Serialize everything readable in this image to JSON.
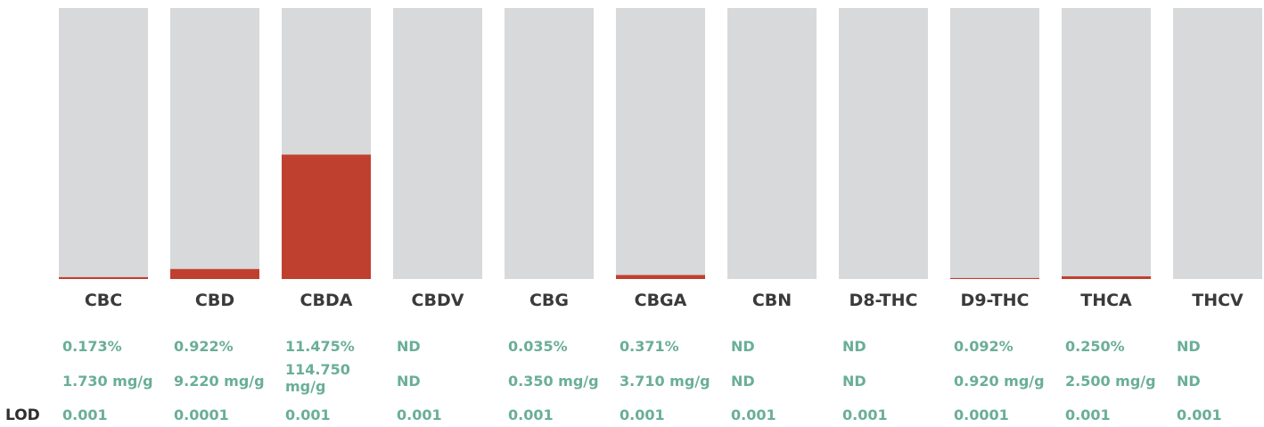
{
  "chart_data": {
    "type": "bar",
    "categories": [
      "CBC",
      "CBD",
      "CBDA",
      "CBDV",
      "CBG",
      "CBGA",
      "CBN",
      "D8-THC",
      "D9-THC",
      "THCA",
      "THCV"
    ],
    "values": [
      0.173,
      0.922,
      11.475,
      0,
      0.035,
      0.371,
      0,
      0,
      0.092,
      0.25,
      0
    ],
    "ylim": [
      0,
      25
    ],
    "rows": {
      "percent": [
        "0.173%",
        "0.922%",
        "11.475%",
        "ND",
        "0.035%",
        "0.371%",
        "ND",
        "ND",
        "0.092%",
        "0.250%",
        "ND"
      ],
      "mg_per_g": [
        [
          "1.730 mg/g"
        ],
        [
          "9.220 mg/g"
        ],
        [
          "114.750",
          "mg/g"
        ],
        [
          "ND"
        ],
        [
          "0.350 mg/g"
        ],
        [
          "3.710 mg/g"
        ],
        [
          "ND"
        ],
        [
          "ND"
        ],
        [
          "0.920 mg/g"
        ],
        [
          "2.500 mg/g"
        ],
        [
          "ND"
        ]
      ],
      "lod_label": "LOD",
      "lod": [
        "0.001",
        "0.0001",
        "0.001",
        "0.001",
        "0.001",
        "0.001",
        "0.001",
        "0.001",
        "0.0001",
        "0.001",
        "0.001"
      ]
    },
    "colors": {
      "track": "#d8d9db",
      "fill": "#c0402f",
      "value_text": "#6aae98",
      "label_text": "#3a3a3a"
    }
  }
}
